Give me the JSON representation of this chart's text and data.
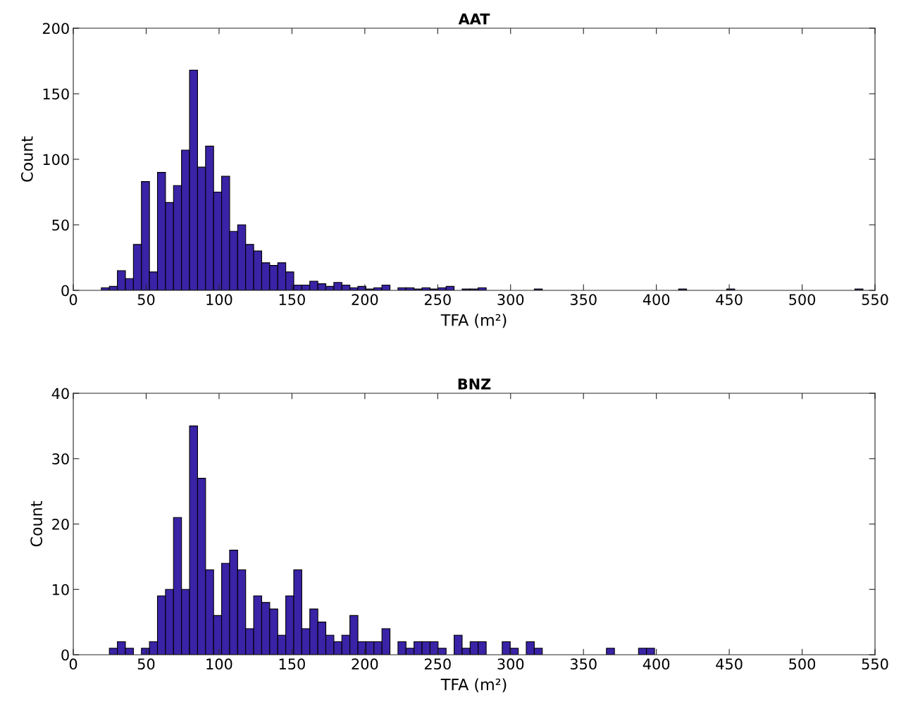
{
  "chart_data": [
    {
      "type": "histogram",
      "title": "AAT",
      "xlabel": "TFA (m²)",
      "ylabel": "Count",
      "color": "#3a23a6",
      "grid": false,
      "bins": [
        19.25,
        24.75,
        30.25,
        35.75,
        41.25,
        46.75,
        52.25,
        57.75,
        63.25,
        68.75,
        74.25,
        79.75,
        85.25,
        90.75,
        96.25,
        101.75,
        107.25,
        112.75,
        118.25,
        123.75,
        129.25,
        134.75,
        140.25,
        145.75,
        151.25,
        156.75,
        162.25,
        167.75,
        173.25,
        178.75,
        184.25,
        189.75,
        195.25,
        200.75,
        206.25,
        211.75,
        217.25,
        222.75,
        228.25,
        233.75,
        239.25,
        244.75,
        250.25,
        255.75,
        261.25,
        266.75,
        272.25,
        277.75,
        283.25,
        288.75,
        294.25,
        299.75,
        305.25,
        310.75,
        316.25,
        321.75,
        327.25,
        332.75,
        338.25,
        343.75,
        349.25,
        354.75,
        360.25,
        365.75,
        371.25,
        376.75,
        382.25,
        387.75,
        393.25,
        398.75,
        404.25,
        409.75,
        415.25,
        420.75,
        426.25,
        431.75,
        437.25,
        442.75,
        448.25,
        453.75,
        459.25,
        464.75,
        470.25,
        475.75,
        481.25,
        486.75,
        492.25,
        497.75,
        503.25,
        508.75,
        514.25,
        519.75,
        525.25,
        530.75,
        536.25,
        541.75
      ],
      "values": [
        2,
        3,
        15,
        9,
        35,
        83,
        14,
        90,
        67,
        80,
        107,
        168,
        94,
        110,
        75,
        87,
        45,
        50,
        35,
        30,
        21,
        19,
        21,
        14,
        4,
        4,
        7,
        5,
        3,
        6,
        4,
        2,
        3,
        1,
        2,
        4,
        0,
        2,
        2,
        1,
        2,
        1,
        2,
        3,
        0,
        1,
        1,
        2,
        0,
        0,
        0,
        0,
        0,
        0,
        1,
        0,
        0,
        0,
        0,
        0,
        0,
        0,
        0,
        0,
        0,
        0,
        0,
        0,
        0,
        0,
        0,
        0,
        1,
        0,
        0,
        0,
        0,
        0,
        1,
        0,
        0,
        0,
        0,
        0,
        0,
        0,
        0,
        0,
        0,
        0,
        0,
        0,
        0,
        0,
        1
      ],
      "xlim": [
        0,
        550
      ],
      "xticks": [
        0,
        50,
        100,
        150,
        200,
        250,
        300,
        350,
        400,
        450,
        500,
        550
      ],
      "ylim": [
        0,
        200
      ],
      "yticks": [
        0,
        50,
        100,
        150,
        200
      ]
    },
    {
      "type": "histogram",
      "title": "BNZ",
      "xlabel": "TFA (m²)",
      "ylabel": "Count",
      "color": "#3a23a6",
      "grid": false,
      "bins": [
        24.75,
        30.25,
        35.75,
        41.25,
        46.75,
        52.25,
        57.75,
        63.25,
        68.75,
        74.25,
        79.75,
        85.25,
        90.75,
        96.25,
        101.75,
        107.25,
        112.75,
        118.25,
        123.75,
        129.25,
        134.75,
        140.25,
        145.75,
        151.25,
        156.75,
        162.25,
        167.75,
        173.25,
        178.75,
        184.25,
        189.75,
        195.25,
        200.75,
        206.25,
        211.75,
        217.25,
        222.75,
        228.25,
        233.75,
        239.25,
        244.75,
        250.25,
        255.75,
        261.25,
        266.75,
        272.25,
        277.75,
        283.25,
        288.75,
        294.25,
        299.75,
        305.25,
        310.75,
        316.25,
        321.75,
        327.25,
        332.75,
        338.25,
        343.75,
        349.25,
        354.75,
        360.25,
        365.75,
        371.25,
        376.75,
        382.25,
        387.75,
        393.25,
        398.75
      ],
      "values": [
        1,
        2,
        1,
        0,
        1,
        2,
        9,
        10,
        21,
        10,
        35,
        27,
        13,
        6,
        14,
        16,
        13,
        4,
        9,
        8,
        7,
        3,
        9,
        13,
        4,
        7,
        5,
        3,
        2,
        3,
        6,
        2,
        2,
        2,
        4,
        0,
        2,
        1,
        2,
        2,
        2,
        1,
        0,
        3,
        1,
        2,
        2,
        0,
        0,
        2,
        1,
        0,
        2,
        1,
        0,
        0,
        0,
        0,
        0,
        0,
        0,
        0,
        1,
        0,
        0,
        0,
        1,
        1
      ],
      "xlim": [
        0,
        550
      ],
      "xticks": [
        0,
        50,
        100,
        150,
        200,
        250,
        300,
        350,
        400,
        450,
        500,
        550
      ],
      "ylim": [
        0,
        40
      ],
      "yticks": [
        0,
        10,
        20,
        30,
        40
      ]
    }
  ]
}
